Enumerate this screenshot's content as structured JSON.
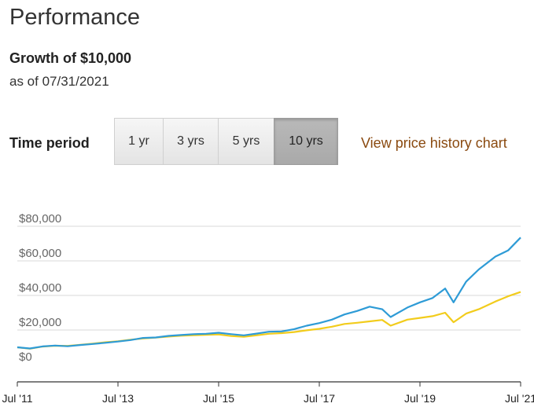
{
  "header": {
    "title": "Performance",
    "subtitle": "Growth of $10,000",
    "as_of": "as of 07/31/2021"
  },
  "time_period": {
    "label": "Time period",
    "options": [
      "1 yr",
      "3 yrs",
      "5 yrs",
      "10 yrs"
    ],
    "selected": "10 yrs"
  },
  "link": {
    "label": "View price history chart"
  },
  "colors": {
    "fund": "#2e9bd6",
    "benchmark": "#f2cc1c",
    "link": "#8a4a10"
  },
  "chart_data": {
    "type": "line",
    "xlabel": "",
    "ylabel": "",
    "x_tick_labels": [
      "Jul '11",
      "Jul '13",
      "Jul '15",
      "Jul '17",
      "Jul '19",
      "Jul '21"
    ],
    "y_tick_labels": [
      "$0",
      "$20,000",
      "$40,000",
      "$60,000",
      "$80,000"
    ],
    "ylim": [
      0,
      80000
    ],
    "xlim": [
      "2011-07",
      "2021-07"
    ],
    "grid": true,
    "legend": "none",
    "x": [
      "2011-07",
      "2011-10",
      "2012-01",
      "2012-04",
      "2012-07",
      "2012-10",
      "2013-01",
      "2013-04",
      "2013-07",
      "2013-10",
      "2014-01",
      "2014-04",
      "2014-07",
      "2014-10",
      "2015-01",
      "2015-04",
      "2015-07",
      "2015-10",
      "2016-01",
      "2016-04",
      "2016-07",
      "2016-10",
      "2017-01",
      "2017-04",
      "2017-07",
      "2017-10",
      "2018-01",
      "2018-04",
      "2018-07",
      "2018-10",
      "2018-12",
      "2019-04",
      "2019-07",
      "2019-10",
      "2020-01",
      "2020-03",
      "2020-06",
      "2020-09",
      "2021-01",
      "2021-04",
      "2021-07"
    ],
    "series": [
      {
        "values": [
          10000,
          9300,
          10500,
          11000,
          10600,
          11300,
          11900,
          12600,
          13300,
          14200,
          15400,
          15700,
          16600,
          17100,
          17600,
          17800,
          18400,
          17600,
          16900,
          17900,
          19000,
          19200,
          20500,
          22500,
          24000,
          26000,
          29000,
          31000,
          33500,
          32000,
          27500,
          33000,
          36000,
          38500,
          44000,
          36000,
          48000,
          55000,
          62500,
          66000,
          73500
        ]
      },
      {
        "values": [
          10000,
          9200,
          10400,
          10900,
          10800,
          11400,
          12100,
          12900,
          13500,
          14400,
          15100,
          15600,
          16200,
          16700,
          17000,
          17200,
          17400,
          16500,
          16100,
          16900,
          17800,
          18200,
          18800,
          19800,
          20700,
          21900,
          23500,
          24200,
          25000,
          25800,
          22500,
          26000,
          27000,
          28000,
          30000,
          24500,
          29500,
          32000,
          36500,
          39500,
          42000
        ]
      }
    ]
  }
}
